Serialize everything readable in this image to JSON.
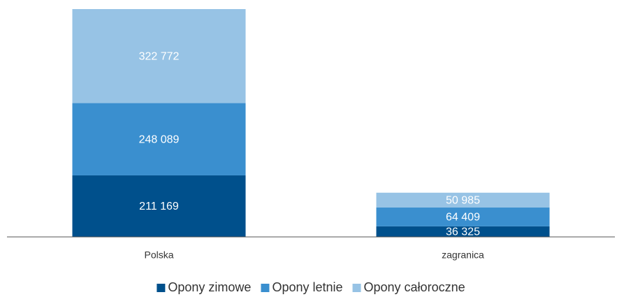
{
  "chart_data": {
    "type": "stacked_bar",
    "categories": [
      "Polska",
      "zagranica"
    ],
    "series": [
      {
        "name": "Opony zimowe",
        "color": "#00508c",
        "values": [
          211169,
          36325
        ],
        "value_labels": [
          "211 169",
          "36 325"
        ]
      },
      {
        "name": "Opony letnie",
        "color": "#3a8fcf",
        "values": [
          248089,
          64409
        ],
        "value_labels": [
          "248 089",
          "64 409"
        ]
      },
      {
        "name": "Opony całoroczne",
        "color": "#97c3e5",
        "values": [
          322772,
          50985
        ],
        "value_labels": [
          "322 772",
          "50 985"
        ]
      }
    ],
    "legend": "bottom"
  }
}
